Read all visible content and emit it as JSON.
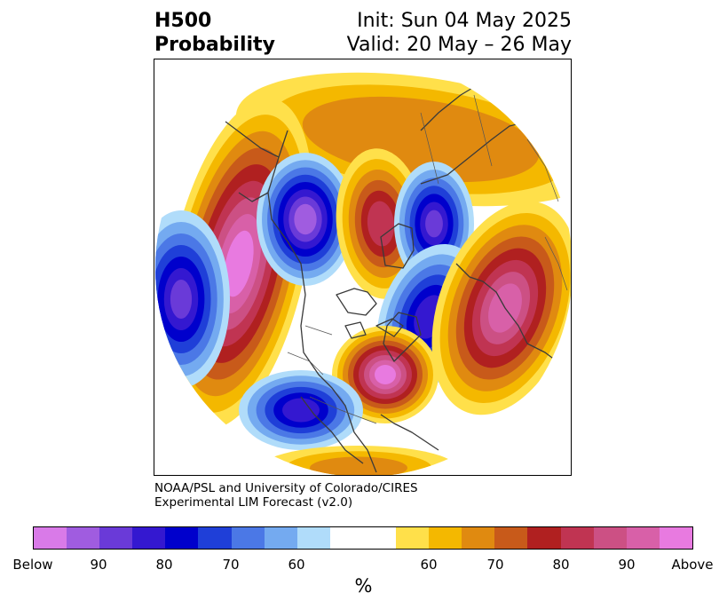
{
  "header": {
    "title_line1": "H500",
    "title_line2": "Probability",
    "init_text": "Init: Sun 04 May 2025",
    "valid_text": "Valid: 20 May – 26 May"
  },
  "credit": {
    "line1": "NOAA/PSL and University of Colorado/CIRES",
    "line2": "Experimental LIM Forecast (v2.0)"
  },
  "colorbar": {
    "colors": [
      "#d97ae8",
      "#a05ce0",
      "#6a3ad8",
      "#3418d0",
      "#0000cc",
      "#1f3fd8",
      "#4b78e6",
      "#74aaf0",
      "#b0dcfa",
      "#ffffff",
      "#ffffff",
      "#ffe04a",
      "#f4b800",
      "#e08a10",
      "#c85a1a",
      "#b02020",
      "#c03452",
      "#cc5084",
      "#d860a8",
      "#e87ae0"
    ],
    "tick_labels": [
      "Below",
      "90",
      "80",
      "70",
      "60",
      "60",
      "70",
      "80",
      "90",
      "Above"
    ],
    "unit": "%"
  },
  "palette": {
    "below": [
      "#b0dcfa",
      "#74aaf0",
      "#4b78e6",
      "#1f3fd8",
      "#0000cc",
      "#3418d0",
      "#6a3ad8",
      "#a05ce0"
    ],
    "above": [
      "#ffe04a",
      "#f4b800",
      "#e08a10",
      "#c85a1a",
      "#b02020",
      "#c03452",
      "#cc5084",
      "#d860a8",
      "#e87ae0"
    ]
  }
}
